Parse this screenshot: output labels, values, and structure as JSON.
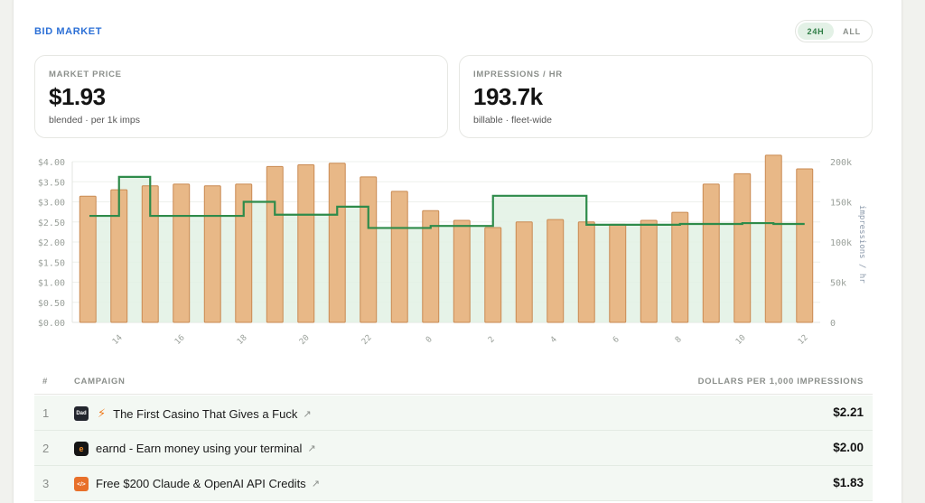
{
  "header": {
    "title": "BID MARKET",
    "ranges": [
      {
        "label": "24H",
        "active": true
      },
      {
        "label": "ALL",
        "active": false
      }
    ]
  },
  "stats": {
    "market_price": {
      "label": "MARKET PRICE",
      "value": "$1.93",
      "sub": "blended · per 1k imps"
    },
    "impressions": {
      "label": "IMPRESSIONS / HR",
      "value": "193.7k",
      "sub": "billable · fleet-wide"
    }
  },
  "colors": {
    "accent": "#2b6fd6",
    "price_line": "#2e8b4a",
    "price_fill": "#e2f1e4",
    "bar_fill": "#e8b887",
    "bar_stroke": "#c98a52"
  },
  "chart_data": {
    "type": "bar+line",
    "x_ticks": [
      "14",
      "16",
      "18",
      "20",
      "22",
      "0",
      "2",
      "4",
      "6",
      "8",
      "10",
      "12"
    ],
    "y_left_ticks": [
      "$4.00",
      "$3.50",
      "$3.00",
      "$2.50",
      "$2.00",
      "$1.50",
      "$1.00",
      "$0.50",
      "$0.00"
    ],
    "y_right_ticks": [
      "200k",
      "150k",
      "100k",
      "50k",
      "0"
    ],
    "y_right_label": "impressions / hr",
    "ylim_price": [
      0,
      4
    ],
    "ylim_impressions": [
      0,
      200000
    ],
    "price_step": [
      2.65,
      3.62,
      2.65,
      2.65,
      2.65,
      3.0,
      2.68,
      2.68,
      2.88,
      2.35,
      2.35,
      2.4,
      2.4,
      3.15,
      3.15,
      3.15,
      2.43,
      2.43,
      2.43,
      2.45,
      2.45,
      2.47,
      2.45,
      2.45
    ],
    "impressions": [
      157000,
      165000,
      170000,
      172000,
      170000,
      172000,
      194000,
      196000,
      198000,
      181000,
      163000,
      139000,
      127000,
      118000,
      125000,
      128000,
      125000,
      122000,
      127000,
      137000,
      172000,
      185000,
      208000,
      191000
    ]
  },
  "table": {
    "columns": {
      "num": "#",
      "campaign": "CAMPAIGN",
      "price": "DOLLARS PER 1,000 IMPRESSIONS"
    },
    "rows": [
      {
        "num": "1",
        "icon_text": "Dad",
        "icon_color": "#23262e",
        "bolt": "⚡",
        "name": "The First Casino That Gives a Fuck",
        "ext": "↗",
        "price": "$2.21"
      },
      {
        "num": "2",
        "icon_text": "e",
        "icon_color": "#151515",
        "bolt": "",
        "name": "earnd - Earn money using your terminal",
        "ext": "↗",
        "price": "$2.00"
      },
      {
        "num": "3",
        "icon_text": "</>",
        "icon_color": "#e8702a",
        "bolt": "",
        "name": "Free $200 Claude & OpenAI API Credits",
        "ext": "↗",
        "price": "$1.83"
      }
    ]
  }
}
